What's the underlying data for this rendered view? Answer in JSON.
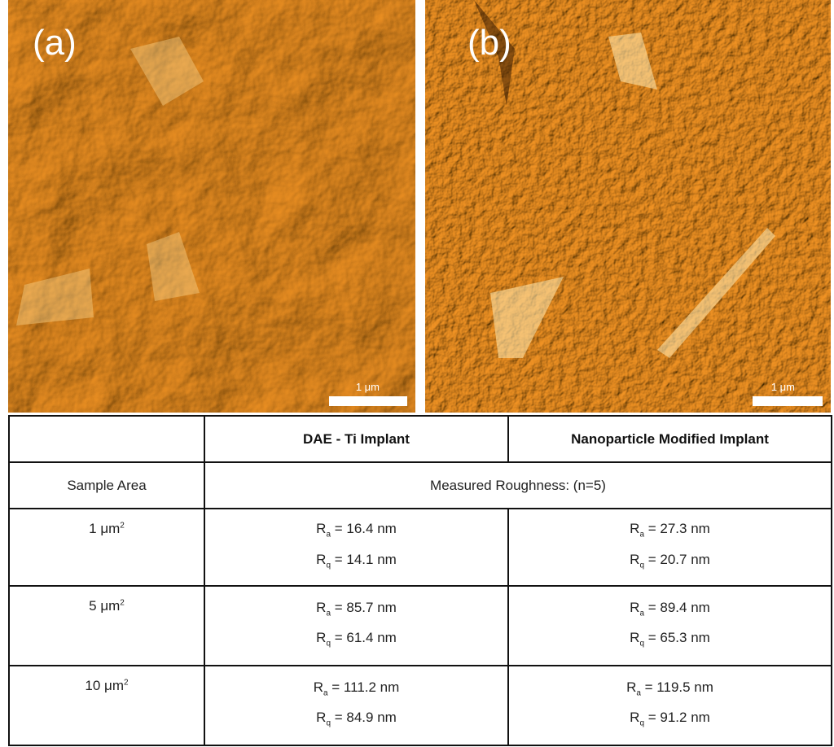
{
  "panels": [
    {
      "label": "(a)",
      "scale": "1 μm"
    },
    {
      "label": "(b)",
      "scale": "1 μm"
    }
  ],
  "table": {
    "header": [
      "DAE - Ti Implant",
      "Nanoparticle Modified Implant"
    ],
    "subheader": {
      "row_label": "Sample Area",
      "span": "Measured Roughness: (n=5)"
    },
    "rows": [
      {
        "area": "1 μm",
        "area_sup": "2",
        "cells": [
          [
            {
              "symbol": "R",
              "sub": "a",
              "rest": "=  16.4 nm"
            },
            {
              "symbol": "R",
              "sub": "q",
              "rest": "= 14.1 nm"
            }
          ],
          [
            {
              "symbol": "R",
              "sub": "a",
              "rest": "= 27.3 nm"
            },
            {
              "symbol": "R",
              "sub": "q",
              "rest": "= 20.7 nm"
            }
          ]
        ]
      },
      {
        "area": "5 μm",
        "area_sup": "2",
        "cells": [
          [
            {
              "symbol": "R",
              "sub": "a",
              "rest": "= 85.7 nm"
            },
            {
              "symbol": "R",
              "sub": "q",
              "rest": "= 61.4 nm"
            }
          ],
          [
            {
              "symbol": "R",
              "sub": "a",
              "rest": "= 89.4 nm"
            },
            {
              "symbol": "R",
              "sub": "q",
              "rest": "= 65.3 nm"
            }
          ]
        ]
      },
      {
        "area": "10 μm",
        "area_sup": "2",
        "cells": [
          [
            {
              "symbol": "R",
              "sub": "a",
              "rest": "= 111.2 nm"
            },
            {
              "symbol": "R",
              "sub": "q",
              "rest": "= 84.9 nm"
            }
          ],
          [
            {
              "symbol": "R",
              "sub": "a",
              "rest": "= 119.5 nm"
            },
            {
              "symbol": "R",
              "sub": "q",
              "rest": "= 91.2 nm"
            }
          ]
        ]
      }
    ]
  }
}
